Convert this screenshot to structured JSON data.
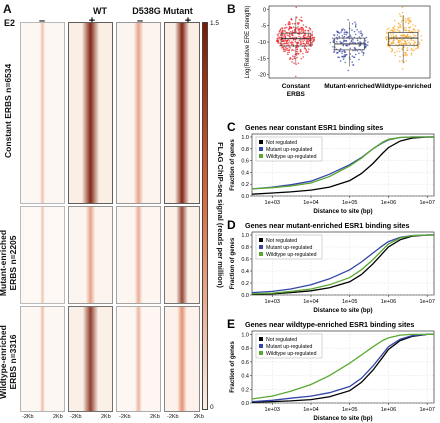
{
  "panel_a": {
    "letter": "A",
    "e2_label": "E2",
    "groups": [
      {
        "name": "WT",
        "signs": [
          "–",
          "+"
        ]
      },
      {
        "name": "D538G Mutant",
        "signs": [
          "–",
          "+"
        ]
      }
    ],
    "row_labels": [
      "Constant ERBS n=6534",
      "Mutant-enriched ERBS n=2205",
      "Wildtype-enriched ERBS n=3316"
    ],
    "x_tick_left": "-2Kb",
    "x_tick_right": "2Kb",
    "colorbar": {
      "max_label": "1.5",
      "min_label": "0",
      "title": "FLAG ChIP-seq signal (reads per million)"
    },
    "colors": {
      "high": "#7a1a05",
      "mid": "#d9683a",
      "low": "#fbeee4"
    }
  },
  "chart_data": [
    {
      "panel": "B",
      "type": "scatter",
      "subtype": "box-with-jitter",
      "ylabel": "Log(Relative ERE strength)",
      "ylim": [
        -21,
        1
      ],
      "yticks": [
        0,
        -5,
        -10,
        -15,
        -20
      ],
      "categories": [
        "Constant ERBS",
        "Mutant-enriched",
        "Wildtype-enriched"
      ],
      "colors": [
        "#ee1c24",
        "#2e3d9e",
        "#f7a21b"
      ],
      "box_stats": [
        {
          "category": "Constant ERBS",
          "q1": -11.2,
          "median": -9.0,
          "q3": -7.3,
          "whisker_low": -16.8,
          "whisker_high": -2.2
        },
        {
          "category": "Mutant-enriched",
          "q1": -12.4,
          "median": -10.6,
          "q3": -8.8,
          "whisker_low": -17.5,
          "whisker_high": -3.8
        },
        {
          "category": "Wildtype-enriched",
          "q1": -11.0,
          "median": -8.8,
          "q3": -7.1,
          "whisker_low": -16.5,
          "whisker_high": -1.8
        }
      ]
    },
    {
      "panel": "C",
      "type": "line",
      "title": "Genes near constant ESR1 binding sites",
      "xlabel": "Distance to site (bp)",
      "ylabel": "Fraction of genes",
      "xscale": "log",
      "xlim": [
        300,
        15000000
      ],
      "ylim": [
        0,
        1.05
      ],
      "xticks": [
        "1e+03",
        "1e+04",
        "1e+05",
        "1e+06",
        "1e+07"
      ],
      "yticks": [
        0.0,
        0.2,
        0.4,
        0.6,
        0.8,
        1.0
      ],
      "legend": "top-left",
      "series": [
        {
          "name": "Not regulated",
          "color": "#000000",
          "x": [
            300,
            1000,
            3000,
            10000,
            30000,
            100000,
            200000,
            400000,
            700000,
            1000000,
            2000000,
            4000000,
            10000000,
            15000000
          ],
          "y": [
            0.03,
            0.05,
            0.07,
            0.1,
            0.15,
            0.26,
            0.38,
            0.55,
            0.72,
            0.82,
            0.93,
            0.98,
            1.0,
            1.0
          ]
        },
        {
          "name": "Mutant up-regulated",
          "color": "#3646a8",
          "x": [
            300,
            1000,
            3000,
            10000,
            30000,
            100000,
            200000,
            400000,
            700000,
            1000000,
            2000000,
            4000000,
            10000000,
            15000000
          ],
          "y": [
            0.12,
            0.15,
            0.19,
            0.25,
            0.37,
            0.53,
            0.65,
            0.8,
            0.9,
            0.95,
            0.99,
            1.0,
            1.0,
            1.0
          ]
        },
        {
          "name": "Wildtype up-regulated",
          "color": "#5aa832",
          "x": [
            300,
            1000,
            3000,
            10000,
            30000,
            100000,
            200000,
            400000,
            700000,
            1000000,
            2000000,
            4000000,
            10000000,
            15000000
          ],
          "y": [
            0.12,
            0.14,
            0.17,
            0.22,
            0.33,
            0.51,
            0.64,
            0.8,
            0.91,
            0.96,
            0.99,
            1.0,
            1.0,
            1.0
          ]
        }
      ]
    },
    {
      "panel": "D",
      "type": "line",
      "title": "Genes near mutant-enriched ESR1 binding sites",
      "xlabel": "Distance to site (bp)",
      "ylabel": "Fraction of genes",
      "xscale": "log",
      "xlim": [
        300,
        15000000
      ],
      "ylim": [
        0,
        1.05
      ],
      "xticks": [
        "1e+03",
        "1e+04",
        "1e+05",
        "1e+06",
        "1e+07"
      ],
      "yticks": [
        0.0,
        0.2,
        0.4,
        0.6,
        0.8,
        1.0
      ],
      "legend": "top-left",
      "series": [
        {
          "name": "Not regulated",
          "color": "#000000",
          "x": [
            300,
            1000,
            3000,
            10000,
            30000,
            100000,
            200000,
            400000,
            700000,
            1000000,
            2000000,
            4000000,
            10000000,
            15000000
          ],
          "y": [
            0.01,
            0.02,
            0.04,
            0.07,
            0.12,
            0.22,
            0.34,
            0.52,
            0.69,
            0.8,
            0.92,
            0.98,
            1.0,
            1.0
          ]
        },
        {
          "name": "Mutant up-regulated",
          "color": "#3646a8",
          "x": [
            300,
            1000,
            3000,
            10000,
            30000,
            100000,
            200000,
            400000,
            700000,
            1000000,
            2000000,
            4000000,
            10000000,
            15000000
          ],
          "y": [
            0.04,
            0.06,
            0.1,
            0.17,
            0.27,
            0.42,
            0.55,
            0.7,
            0.82,
            0.89,
            0.96,
            0.99,
            1.0,
            1.0
          ]
        },
        {
          "name": "Wildtype up-regulated",
          "color": "#5aa832",
          "x": [
            300,
            1000,
            3000,
            10000,
            30000,
            100000,
            200000,
            400000,
            700000,
            1000000,
            2000000,
            4000000,
            10000000,
            15000000
          ],
          "y": [
            0.02,
            0.03,
            0.06,
            0.1,
            0.17,
            0.29,
            0.42,
            0.59,
            0.75,
            0.85,
            0.95,
            0.99,
            1.0,
            1.0
          ]
        }
      ]
    },
    {
      "panel": "E",
      "type": "line",
      "title": "Genes near wildtype-enriched ESR1 binding sites",
      "xlabel": "Distance to site (bp)",
      "ylabel": "Fraction of genes",
      "xscale": "log",
      "xlim": [
        300,
        15000000
      ],
      "ylim": [
        0,
        1.05
      ],
      "xticks": [
        "1e+03",
        "1e+04",
        "1e+05",
        "1e+06",
        "1e+07"
      ],
      "yticks": [
        0.0,
        0.2,
        0.4,
        0.6,
        0.8,
        1.0
      ],
      "legend": "top-left",
      "series": [
        {
          "name": "Not regulated",
          "color": "#000000",
          "x": [
            300,
            1000,
            3000,
            10000,
            30000,
            100000,
            200000,
            400000,
            700000,
            1000000,
            2000000,
            4000000,
            10000000,
            15000000
          ],
          "y": [
            0.01,
            0.02,
            0.03,
            0.05,
            0.09,
            0.18,
            0.3,
            0.48,
            0.66,
            0.78,
            0.91,
            0.97,
            1.0,
            1.0
          ]
        },
        {
          "name": "Mutant up-regulated",
          "color": "#3646a8",
          "x": [
            300,
            1000,
            3000,
            10000,
            30000,
            100000,
            200000,
            400000,
            700000,
            1000000,
            2000000,
            4000000,
            10000000,
            15000000
          ],
          "y": [
            0.02,
            0.04,
            0.07,
            0.1,
            0.15,
            0.24,
            0.36,
            0.54,
            0.71,
            0.82,
            0.93,
            0.98,
            1.0,
            1.0
          ]
        },
        {
          "name": "Wildtype up-regulated",
          "color": "#5aa832",
          "x": [
            300,
            1000,
            3000,
            10000,
            30000,
            100000,
            200000,
            400000,
            700000,
            1000000,
            2000000,
            4000000,
            10000000,
            15000000
          ],
          "y": [
            0.06,
            0.1,
            0.17,
            0.27,
            0.4,
            0.58,
            0.7,
            0.82,
            0.91,
            0.95,
            0.99,
            1.0,
            1.0,
            1.0
          ]
        }
      ]
    }
  ]
}
